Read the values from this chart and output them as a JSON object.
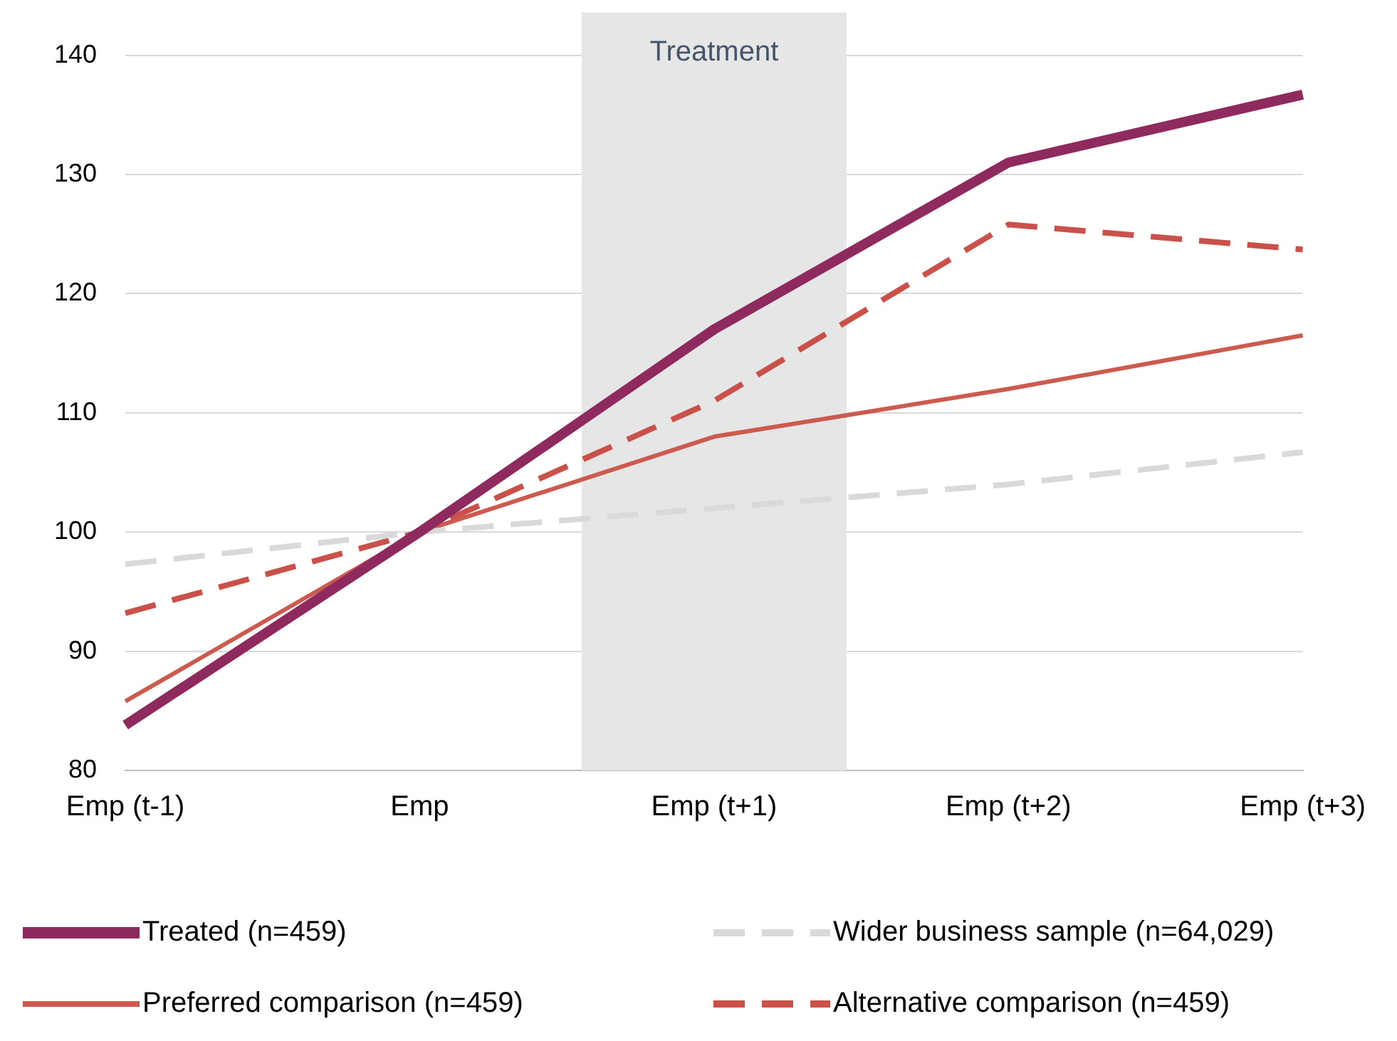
{
  "chart_data": {
    "type": "line",
    "categories": [
      "Emp (t-1)",
      "Emp",
      "Emp (t+1)",
      "Emp (t+2)",
      "Emp (t+3)"
    ],
    "series": [
      {
        "name": "Treated (n=459)",
        "color": "#8e2a5e",
        "values": [
          83.8,
          100,
          117,
          131,
          136.7
        ]
      },
      {
        "name": "Wider business sample (n=64,029)",
        "color": "#d9d9d9",
        "line_style": "dashed",
        "values": [
          97.3,
          100,
          102,
          104,
          106.7
        ]
      },
      {
        "name": "Preferred comparison (n=459)",
        "color": "#cc5a4e",
        "values": [
          85.8,
          100,
          108,
          112,
          116.5
        ]
      },
      {
        "name": "Alternative comparison (n=459)",
        "color": "#c9514a",
        "line_style": "dashed",
        "values": [
          93.2,
          100,
          111,
          125.8,
          123.7
        ]
      }
    ],
    "ylim": [
      80,
      140
    ],
    "yticks": [
      80,
      90,
      100,
      110,
      120,
      130,
      140
    ],
    "grid": "y",
    "legend": "bottom",
    "marker": "none",
    "bands": [
      {
        "axis": "x",
        "from": "Emp (t+1)",
        "to": "Emp (t+1)",
        "label": "Treatment",
        "color": "#e6e6e6"
      }
    ]
  }
}
